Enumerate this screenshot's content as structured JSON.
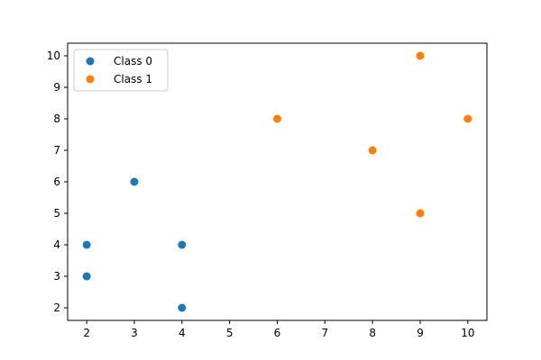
{
  "chart_data": {
    "type": "scatter",
    "title": "",
    "xlabel": "",
    "ylabel": "",
    "xlim": [
      1.6,
      10.4
    ],
    "ylim": [
      1.6,
      10.4
    ],
    "xticks": [
      2,
      3,
      4,
      5,
      6,
      7,
      8,
      9,
      10
    ],
    "yticks": [
      2,
      3,
      4,
      5,
      6,
      7,
      8,
      9,
      10
    ],
    "grid": false,
    "legend_position": "top-left",
    "series": [
      {
        "name": "Class 0",
        "color": "#1f77b4",
        "points": [
          [
            2,
            4
          ],
          [
            4,
            4
          ],
          [
            3,
            6
          ],
          [
            2,
            3
          ],
          [
            4,
            2
          ]
        ]
      },
      {
        "name": "Class 1",
        "color": "#ff7f0e",
        "points": [
          [
            6,
            8
          ],
          [
            8,
            7
          ],
          [
            9,
            10
          ],
          [
            10,
            8
          ],
          [
            9,
            5
          ]
        ]
      }
    ]
  }
}
